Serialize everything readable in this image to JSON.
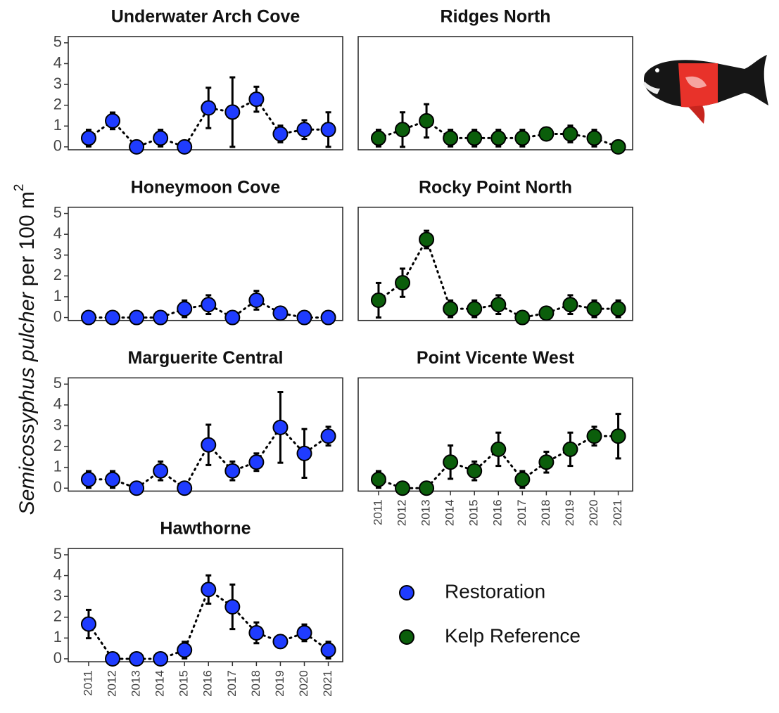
{
  "axis_title": {
    "species": "Semicossyphus pulcher",
    "unit": "per 100 m",
    "exponent": "2"
  },
  "legend": [
    {
      "name": "Restoration",
      "color": "#1f3cff"
    },
    {
      "name": "Kelp Reference",
      "color": "#0b5e0b"
    }
  ],
  "chart_data": [
    {
      "type": "line",
      "title": "Underwater Arch Cove",
      "color": "#1f3cff",
      "x": [
        2011,
        2012,
        2013,
        2014,
        2015,
        2016,
        2017,
        2018,
        2019,
        2020,
        2021
      ],
      "values": [
        0.42,
        1.25,
        0,
        0.42,
        0,
        1.87,
        1.67,
        2.29,
        0.62,
        0.83,
        0.83
      ],
      "errors": [
        0.4,
        0.4,
        0,
        0.4,
        0,
        0.97,
        1.67,
        0.6,
        0.4,
        0.45,
        0.83
      ],
      "xlim": [
        2010.15,
        2021.6
      ],
      "ylim": [
        -0.14,
        5.3
      ],
      "yticks": [
        0,
        1,
        2,
        3,
        4,
        5
      ]
    },
    {
      "type": "line",
      "title": "Ridges North",
      "color": "#0b5e0b",
      "x": [
        2011,
        2012,
        2013,
        2014,
        2015,
        2016,
        2017,
        2018,
        2019,
        2020,
        2021
      ],
      "values": [
        0.42,
        0.83,
        1.25,
        0.42,
        0.42,
        0.42,
        0.42,
        0.62,
        0.62,
        0.42,
        0
      ],
      "errors": [
        0.4,
        0.83,
        0.8,
        0.4,
        0.4,
        0.4,
        0.4,
        0.15,
        0.4,
        0.4,
        0
      ],
      "xlim": [
        2010.15,
        2021.6
      ],
      "ylim": [
        -0.14,
        5.3
      ]
    },
    {
      "type": "line",
      "title": "Honeymoon Cove",
      "color": "#1f3cff",
      "x": [
        2011,
        2012,
        2013,
        2014,
        2015,
        2016,
        2017,
        2018,
        2019,
        2020,
        2021
      ],
      "values": [
        0,
        0,
        0,
        0,
        0.42,
        0.62,
        0,
        0.83,
        0.21,
        0,
        0
      ],
      "errors": [
        0,
        0,
        0,
        0,
        0.4,
        0.45,
        0,
        0.45,
        0.1,
        0,
        0
      ],
      "xlim": [
        2010.15,
        2021.6
      ],
      "ylim": [
        -0.14,
        5.3
      ],
      "yticks": [
        0,
        1,
        2,
        3,
        4,
        5
      ]
    },
    {
      "type": "line",
      "title": "Rocky Point North",
      "color": "#0b5e0b",
      "x": [
        2011,
        2012,
        2013,
        2014,
        2015,
        2016,
        2017,
        2018,
        2019,
        2020,
        2021
      ],
      "values": [
        0.83,
        1.67,
        3.75,
        0.42,
        0.42,
        0.62,
        0,
        0.21,
        0.62,
        0.42,
        0.42
      ],
      "errors": [
        0.83,
        0.68,
        0.42,
        0.4,
        0.4,
        0.45,
        0,
        0.1,
        0.45,
        0.4,
        0.4
      ],
      "xlim": [
        2010.15,
        2021.6
      ],
      "ylim": [
        -0.14,
        5.3
      ]
    },
    {
      "type": "line",
      "title": "Marguerite Central",
      "color": "#1f3cff",
      "x": [
        2011,
        2012,
        2013,
        2014,
        2015,
        2016,
        2017,
        2018,
        2019,
        2020,
        2021
      ],
      "values": [
        0.42,
        0.42,
        0,
        0.83,
        0,
        2.08,
        0.83,
        1.25,
        2.92,
        1.67,
        2.5
      ],
      "errors": [
        0.4,
        0.4,
        0,
        0.45,
        0,
        0.97,
        0.45,
        0.42,
        1.7,
        1.17,
        0.45
      ],
      "xlim": [
        2010.15,
        2021.6
      ],
      "ylim": [
        -0.14,
        5.3
      ],
      "yticks": [
        0,
        1,
        2,
        3,
        4,
        5
      ]
    },
    {
      "type": "line",
      "title": "Point Vicente West",
      "color": "#0b5e0b",
      "x": [
        2011,
        2012,
        2013,
        2014,
        2015,
        2016,
        2017,
        2018,
        2019,
        2020,
        2021
      ],
      "values": [
        0.42,
        0,
        0,
        1.25,
        0.83,
        1.87,
        0.42,
        1.25,
        1.87,
        2.5,
        2.5
      ],
      "errors": [
        0.4,
        0,
        0,
        0.8,
        0.45,
        0.8,
        0.4,
        0.5,
        0.8,
        0.45,
        1.07
      ],
      "xlim": [
        2010.15,
        2021.6
      ],
      "ylim": [
        -0.14,
        5.3
      ],
      "xticks": [
        2011,
        2012,
        2013,
        2014,
        2015,
        2016,
        2017,
        2018,
        2019,
        2020,
        2021
      ]
    },
    {
      "type": "line",
      "title": "Hawthorne",
      "color": "#1f3cff",
      "x": [
        2011,
        2012,
        2013,
        2014,
        2015,
        2016,
        2017,
        2018,
        2019,
        2020,
        2021
      ],
      "values": [
        1.67,
        0,
        0,
        0,
        0.42,
        3.33,
        2.5,
        1.25,
        0.83,
        1.25,
        0.42
      ],
      "errors": [
        0.68,
        0,
        0,
        0,
        0.4,
        0.68,
        1.07,
        0.5,
        0.3,
        0.4,
        0.4
      ],
      "xlim": [
        2010.15,
        2021.6
      ],
      "ylim": [
        -0.14,
        5.3
      ],
      "yticks": [
        0,
        1,
        2,
        3,
        4,
        5
      ],
      "xticks": [
        2011,
        2012,
        2013,
        2014,
        2015,
        2016,
        2017,
        2018,
        2019,
        2020,
        2021
      ]
    }
  ]
}
